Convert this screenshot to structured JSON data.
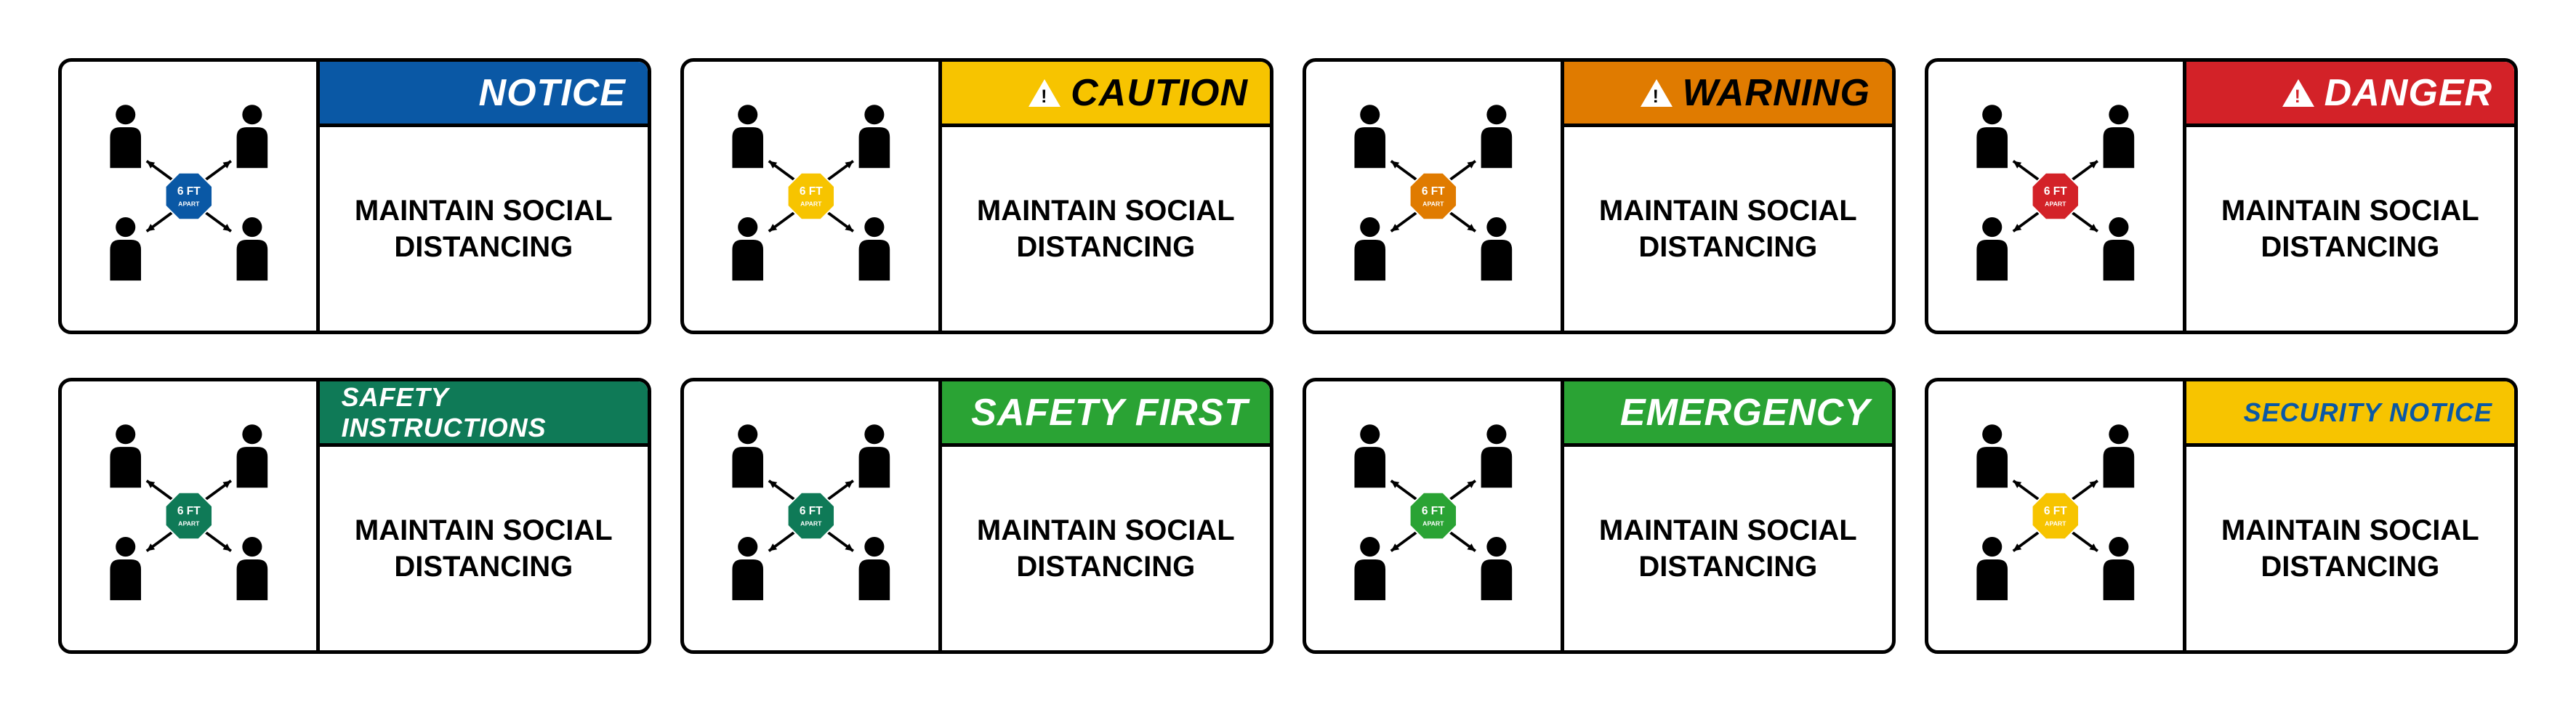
{
  "body_line1": "MAINTAIN SOCIAL",
  "body_line2": "DISTANCING",
  "octagon_line1": "6 FT",
  "octagon_line2": "APART",
  "signs": [
    {
      "header": "NOTICE",
      "bg": "#0a58a5",
      "fg": "#ffffff",
      "icon": "none",
      "oct": "#0a58a5",
      "size": "large"
    },
    {
      "header": "CAUTION",
      "bg": "#f7c400",
      "fg": "#000000",
      "icon": "tri-black",
      "oct": "#f7c400",
      "size": "large"
    },
    {
      "header": "WARNING",
      "bg": "#e07b00",
      "fg": "#000000",
      "icon": "tri-black",
      "oct": "#e07b00",
      "size": "large"
    },
    {
      "header": "DANGER",
      "bg": "#d32228",
      "fg": "#ffffff",
      "icon": "tri-red",
      "oct": "#d32228",
      "size": "large"
    },
    {
      "header": "SAFETY INSTRUCTIONS",
      "bg": "#0f7a57",
      "fg": "#ffffff",
      "icon": "none",
      "oct": "#0f7a57",
      "size": "small"
    },
    {
      "header": "SAFETY FIRST",
      "bg": "#2aa334",
      "fg": "#ffffff",
      "icon": "none",
      "oct": "#0f7a57",
      "size": "large"
    },
    {
      "header": "EMERGENCY",
      "bg": "#2aa334",
      "fg": "#ffffff",
      "icon": "none",
      "oct": "#2aa334",
      "size": "large"
    },
    {
      "header": "SECURITY NOTICE",
      "bg": "#f7c400",
      "fg": "#0a58a5",
      "icon": "none",
      "oct": "#f7c400",
      "size": "small"
    }
  ],
  "styling": {
    "border_color": "#000000",
    "border_width": 5,
    "border_radius": 18,
    "person_color": "#000000",
    "arrow_color": "#000000",
    "background": "#ffffff"
  }
}
